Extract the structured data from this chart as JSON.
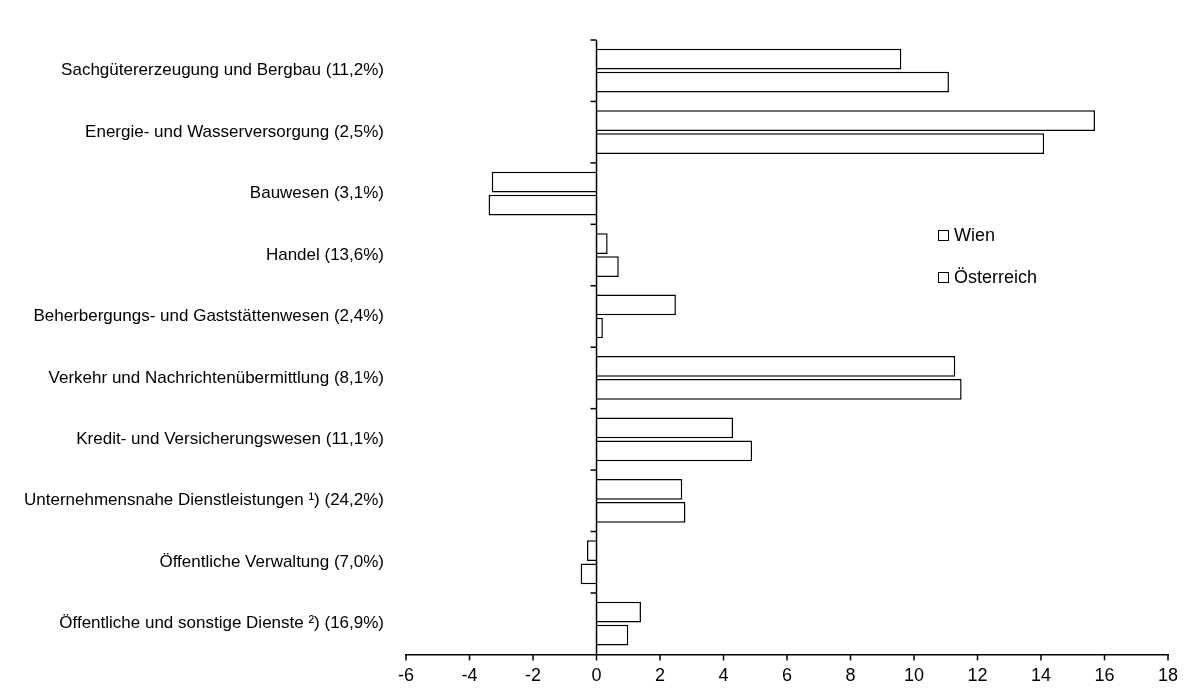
{
  "chart_data": {
    "type": "bar",
    "orientation": "horizontal",
    "categories": [
      "Sachgütererzeugung und Bergbau (11,2%)",
      "Energie- und Wasserversorgung (2,5%)",
      "Bauwesen (3,1%)",
      "Handel (13,6%)",
      "Beherbergungs- und Gaststättenwesen (2,4%)",
      "Verkehr und Nachrichtenübermittlung (8,1%)",
      "Kredit- und Versicherungswesen (11,1%)",
      "Unternehmensnahe Dienstleistungen ¹) (24,2%)",
      "Öffentliche Verwaltung (7,0%)",
      "Öffentliche und sonstige Dienste ²) (16,9%)"
    ],
    "series": [
      {
        "name": "Wien",
        "color": "#ffffff",
        "values": [
          9.6,
          15.7,
          -3.3,
          0.35,
          2.5,
          11.3,
          4.3,
          2.7,
          -0.3,
          1.4
        ]
      },
      {
        "name": "Österreich",
        "color": "#ffffff",
        "values": [
          11.1,
          14.1,
          -3.4,
          0.7,
          0.2,
          11.5,
          4.9,
          2.8,
          -0.5,
          1.0
        ]
      }
    ],
    "xlim": [
      -6,
      18
    ],
    "xticks": [
      -6,
      -4,
      -2,
      0,
      2,
      4,
      6,
      8,
      10,
      12,
      14,
      16,
      18
    ],
    "ref_lines": [
      {
        "axis": "x",
        "value": 0,
        "color": "#000000"
      }
    ],
    "legend": "right",
    "grid": false
  }
}
